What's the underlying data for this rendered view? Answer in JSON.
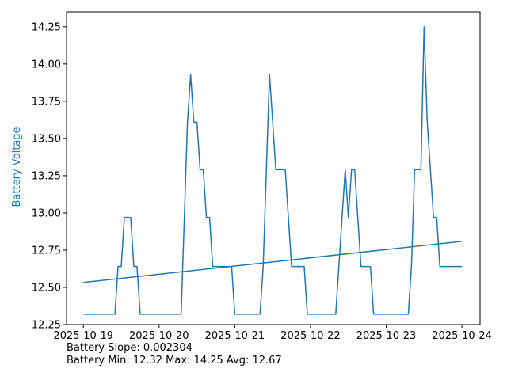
{
  "chart_data": {
    "type": "line",
    "ylabel": "Battery Voltage",
    "xlabel": "",
    "ylim": [
      12.25,
      14.35
    ],
    "xlim": [
      "2025-10-18T18:40",
      "2025-10-24T05:45"
    ],
    "x_ticks": [
      "2025-10-19",
      "2025-10-20",
      "2025-10-21",
      "2025-10-22",
      "2025-10-23",
      "2025-10-24"
    ],
    "y_ticks": [
      "12.25",
      "12.50",
      "12.75",
      "13.00",
      "13.25",
      "13.50",
      "13.75",
      "14.00",
      "14.25"
    ],
    "grid": false,
    "colors": {
      "series": "#1f77b4",
      "ylabel": "#1f77b4"
    },
    "series": [
      {
        "points": [
          [
            "2025-10-19T00:00",
            12.32
          ],
          [
            "2025-10-19T10:00",
            12.32
          ],
          [
            "2025-10-19T11:00",
            12.64
          ],
          [
            "2025-10-19T12:00",
            12.64
          ],
          [
            "2025-10-19T13:00",
            12.97
          ],
          [
            "2025-10-19T15:00",
            12.97
          ],
          [
            "2025-10-19T16:00",
            12.64
          ],
          [
            "2025-10-19T17:00",
            12.64
          ],
          [
            "2025-10-19T18:00",
            12.32
          ],
          [
            "2025-10-20T07:00",
            12.32
          ],
          [
            "2025-10-20T09:00",
            13.61
          ],
          [
            "2025-10-20T10:00",
            13.93
          ],
          [
            "2025-10-20T11:00",
            13.61
          ],
          [
            "2025-10-20T12:00",
            13.61
          ],
          [
            "2025-10-20T13:00",
            13.29
          ],
          [
            "2025-10-20T14:00",
            13.29
          ],
          [
            "2025-10-20T15:00",
            12.97
          ],
          [
            "2025-10-20T16:00",
            12.97
          ],
          [
            "2025-10-20T17:00",
            12.64
          ],
          [
            "2025-10-20T23:00",
            12.64
          ],
          [
            "2025-10-21T00:00",
            12.32
          ],
          [
            "2025-10-21T08:00",
            12.32
          ],
          [
            "2025-10-21T09:00",
            12.64
          ],
          [
            "2025-10-21T11:00",
            13.93
          ],
          [
            "2025-10-21T13:00",
            13.29
          ],
          [
            "2025-10-21T16:00",
            13.29
          ],
          [
            "2025-10-21T18:00",
            12.64
          ],
          [
            "2025-10-21T22:00",
            12.64
          ],
          [
            "2025-10-21T23:00",
            12.32
          ],
          [
            "2025-10-22T08:00",
            12.32
          ],
          [
            "2025-10-22T10:00",
            12.97
          ],
          [
            "2025-10-22T11:00",
            13.29
          ],
          [
            "2025-10-22T12:00",
            12.97
          ],
          [
            "2025-10-22T13:00",
            13.29
          ],
          [
            "2025-10-22T14:00",
            13.29
          ],
          [
            "2025-10-22T16:00",
            12.64
          ],
          [
            "2025-10-22T19:00",
            12.64
          ],
          [
            "2025-10-22T20:00",
            12.32
          ],
          [
            "2025-10-23T07:00",
            12.32
          ],
          [
            "2025-10-23T08:00",
            12.64
          ],
          [
            "2025-10-23T09:00",
            13.29
          ],
          [
            "2025-10-23T11:00",
            13.29
          ],
          [
            "2025-10-23T12:00",
            14.25
          ],
          [
            "2025-10-23T13:00",
            13.61
          ],
          [
            "2025-10-23T15:00",
            12.97
          ],
          [
            "2025-10-23T16:00",
            12.97
          ],
          [
            "2025-10-23T17:00",
            12.64
          ],
          [
            "2025-10-24T00:00",
            12.64
          ]
        ]
      },
      {
        "points": [
          [
            "2025-10-19T00:00",
            12.533
          ],
          [
            "2025-10-24T00:00",
            12.809
          ]
        ]
      }
    ]
  },
  "stats": {
    "slope_line": "Battery Slope: 0.002304",
    "summary_line": "Battery Min: 12.32 Max: 14.25 Avg: 12.67"
  }
}
